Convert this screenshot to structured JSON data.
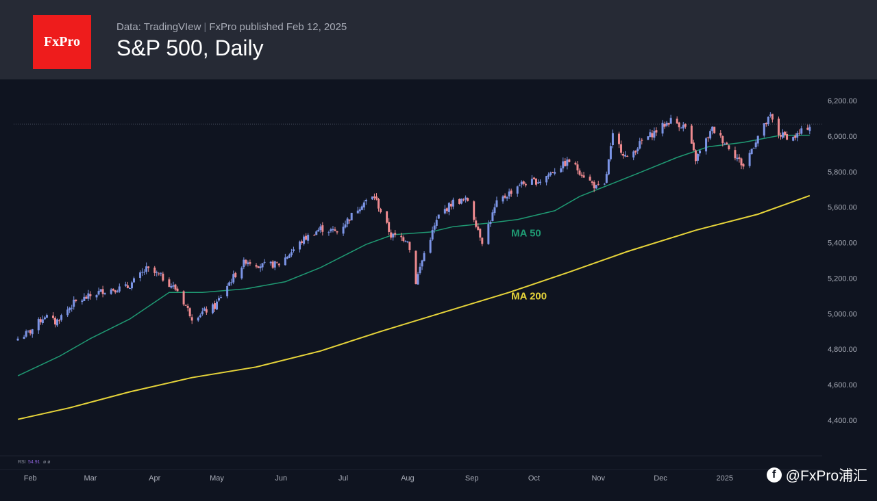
{
  "header": {
    "logo_text": "FxPro",
    "source": "Data: TradingVIew",
    "publisher": "FxPro published Feb 12, 2025",
    "title": "S&P 500, Daily"
  },
  "footer": {
    "watermark": "@FxPro浦汇",
    "icon": "f"
  },
  "colors": {
    "background": "#0f1420",
    "up_candle": "#7c95e6",
    "down_candle": "#ee8a8f",
    "ma50": "#1f9a73",
    "ma200": "#e6d43a",
    "axis_text": "#a9adb8"
  },
  "chart_data": {
    "type": "candlestick",
    "title": "S&P 500, Daily",
    "ylim": [
      4300,
      6250
    ],
    "y_ticks": [
      "6,200.00",
      "6,000.00",
      "5,800.00",
      "5,600.00",
      "5,400.00",
      "5,200.00",
      "5,000.00",
      "4,800.00",
      "4,600.00",
      "4,400.00"
    ],
    "x_ticks": [
      "Feb",
      "Mar",
      "Apr",
      "May",
      "Jun",
      "Jul",
      "Aug",
      "Sep",
      "Oct",
      "Nov",
      "Dec",
      "2025"
    ],
    "series": [
      {
        "name": "MA 50",
        "points": [
          [
            "2024-01-26",
            4650
          ],
          [
            "2024-02-15",
            4760
          ],
          [
            "2024-03-01",
            4860
          ],
          [
            "2024-03-20",
            4970
          ],
          [
            "2024-04-08",
            5120
          ],
          [
            "2024-04-24",
            5120
          ],
          [
            "2024-05-15",
            5140
          ],
          [
            "2024-06-03",
            5180
          ],
          [
            "2024-06-20",
            5260
          ],
          [
            "2024-07-12",
            5390
          ],
          [
            "2024-07-25",
            5445
          ],
          [
            "2024-08-12",
            5460
          ],
          [
            "2024-08-23",
            5490
          ],
          [
            "2024-09-09",
            5510
          ],
          [
            "2024-09-23",
            5530
          ],
          [
            "2024-10-11",
            5580
          ],
          [
            "2024-10-23",
            5660
          ],
          [
            "2024-11-05",
            5720
          ],
          [
            "2024-11-20",
            5790
          ],
          [
            "2024-12-09",
            5880
          ],
          [
            "2024-12-24",
            5940
          ],
          [
            "2025-01-10",
            5965
          ],
          [
            "2025-01-28",
            6005
          ],
          [
            "2025-02-11",
            6005
          ]
        ]
      },
      {
        "name": "MA 200",
        "points": [
          [
            "2024-01-26",
            4405
          ],
          [
            "2024-02-20",
            4470
          ],
          [
            "2024-03-20",
            4560
          ],
          [
            "2024-04-19",
            4640
          ],
          [
            "2024-05-20",
            4700
          ],
          [
            "2024-06-20",
            4790
          ],
          [
            "2024-07-19",
            4900
          ],
          [
            "2024-08-19",
            5010
          ],
          [
            "2024-09-19",
            5120
          ],
          [
            "2024-10-18",
            5235
          ],
          [
            "2024-11-15",
            5350
          ],
          [
            "2024-12-18",
            5470
          ],
          [
            "2025-01-17",
            5560
          ],
          [
            "2025-02-11",
            5665
          ]
        ]
      }
    ],
    "price_points": [
      [
        "2024-01-26",
        4860
      ],
      [
        "2024-02-01",
        4900
      ],
      [
        "2024-02-08",
        4990
      ],
      [
        "2024-02-13",
        4950
      ],
      [
        "2024-02-22",
        5060
      ],
      [
        "2024-03-07",
        5130
      ],
      [
        "2024-03-19",
        5150
      ],
      [
        "2024-03-28",
        5250
      ],
      [
        "2024-04-04",
        5210
      ],
      [
        "2024-04-12",
        5130
      ],
      [
        "2024-04-19",
        4980
      ],
      [
        "2024-04-30",
        5040
      ],
      [
        "2024-05-06",
        5160
      ],
      [
        "2024-05-15",
        5300
      ],
      [
        "2024-05-23",
        5270
      ],
      [
        "2024-05-31",
        5280
      ],
      [
        "2024-06-12",
        5420
      ],
      [
        "2024-06-20",
        5480
      ],
      [
        "2024-06-28",
        5460
      ],
      [
        "2024-07-10",
        5620
      ],
      [
        "2024-07-16",
        5660
      ],
      [
        "2024-07-24",
        5440
      ],
      [
        "2024-08-01",
        5420
      ],
      [
        "2024-08-05",
        5180
      ],
      [
        "2024-08-09",
        5340
      ],
      [
        "2024-08-16",
        5550
      ],
      [
        "2024-08-23",
        5630
      ],
      [
        "2024-08-30",
        5640
      ],
      [
        "2024-09-06",
        5410
      ],
      [
        "2024-09-13",
        5620
      ],
      [
        "2024-09-24",
        5730
      ],
      [
        "2024-10-04",
        5750
      ],
      [
        "2024-10-11",
        5810
      ],
      [
        "2024-10-18",
        5860
      ],
      [
        "2024-10-31",
        5710
      ],
      [
        "2024-11-04",
        5720
      ],
      [
        "2024-11-08",
        6000
      ],
      [
        "2024-11-15",
        5870
      ],
      [
        "2024-11-22",
        5970
      ],
      [
        "2024-12-06",
        6090
      ],
      [
        "2024-12-13",
        6050
      ],
      [
        "2024-12-18",
        5870
      ],
      [
        "2024-12-26",
        6040
      ],
      [
        "2025-01-03",
        5940
      ],
      [
        "2025-01-10",
        5830
      ],
      [
        "2025-01-17",
        6000
      ],
      [
        "2025-01-23",
        6110
      ],
      [
        "2025-01-27",
        6010
      ],
      [
        "2025-02-03",
        5990
      ],
      [
        "2025-02-11",
        6060
      ]
    ],
    "annotations": [
      {
        "text": "MA 50",
        "x": "2024-09-20",
        "y": 5435
      },
      {
        "text": "MA 200",
        "x": "2024-09-20",
        "y": 5080
      }
    ],
    "last_price_line": 6068,
    "indicator_label": {
      "name": "RSI",
      "value": "54.91",
      "extra": "ø ø"
    }
  }
}
